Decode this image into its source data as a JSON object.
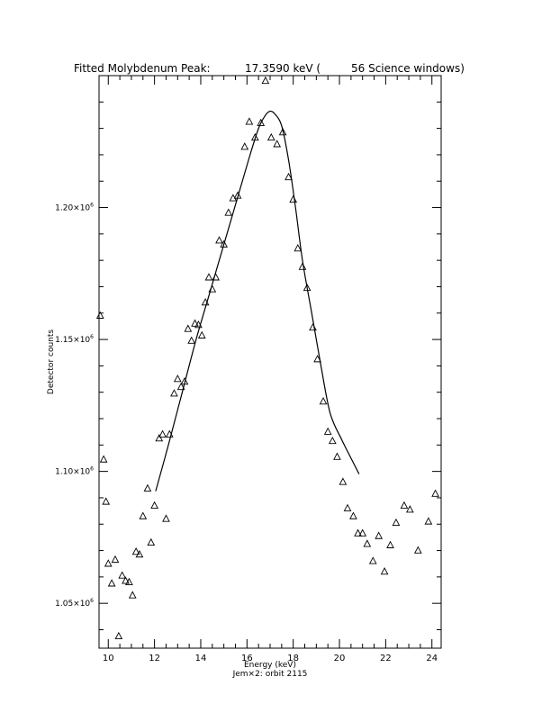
{
  "chart_data": {
    "type": "scatter",
    "title_parts": {
      "label": "Fitted Molybdenum Peak:",
      "value": "17.3590 keV (",
      "windows": "56 Science windows)"
    },
    "xlabel": "Energy (keV)",
    "ylabel": "Detector counts",
    "footer": "Jem×2: orbit 2115",
    "xlim": [
      9.6,
      24.4
    ],
    "ylim": [
      1033000,
      1250000
    ],
    "x_ticks": [
      10,
      12,
      14,
      16,
      18,
      20,
      22,
      24
    ],
    "y_ticks": [
      {
        "value": 1050000,
        "mantissa": "1.05×10",
        "exp": "6"
      },
      {
        "value": 1100000,
        "mantissa": "1.10×10",
        "exp": "6"
      },
      {
        "value": 1150000,
        "mantissa": "1.15×10",
        "exp": "6"
      },
      {
        "value": 1200000,
        "mantissa": "1.20×10",
        "exp": "6"
      }
    ],
    "marker": "triangle",
    "points": [
      [
        9.65,
        1159000
      ],
      [
        9.8,
        1104500
      ],
      [
        9.9,
        1088500
      ],
      [
        10.0,
        1065000
      ],
      [
        10.15,
        1057500
      ],
      [
        10.3,
        1066500
      ],
      [
        10.45,
        1037500
      ],
      [
        10.6,
        1060500
      ],
      [
        10.75,
        1058500
      ],
      [
        10.9,
        1058000
      ],
      [
        11.05,
        1053000
      ],
      [
        11.2,
        1069500
      ],
      [
        11.35,
        1068500
      ],
      [
        11.5,
        1083000
      ],
      [
        11.7,
        1093500
      ],
      [
        11.85,
        1073000
      ],
      [
        12.0,
        1087000
      ],
      [
        12.2,
        1112500
      ],
      [
        12.35,
        1114000
      ],
      [
        12.5,
        1082000
      ],
      [
        12.65,
        1114000
      ],
      [
        12.85,
        1129500
      ],
      [
        13.0,
        1135000
      ],
      [
        13.15,
        1132000
      ],
      [
        13.3,
        1134000
      ],
      [
        13.45,
        1154000
      ],
      [
        13.6,
        1149500
      ],
      [
        13.75,
        1156000
      ],
      [
        13.9,
        1155500
      ],
      [
        14.05,
        1151500
      ],
      [
        14.2,
        1164000
      ],
      [
        14.35,
        1173500
      ],
      [
        14.5,
        1169000
      ],
      [
        14.65,
        1173500
      ],
      [
        14.8,
        1187500
      ],
      [
        15.0,
        1186000
      ],
      [
        15.2,
        1198000
      ],
      [
        15.4,
        1203500
      ],
      [
        15.6,
        1204500
      ],
      [
        15.9,
        1223000
      ],
      [
        16.1,
        1232500
      ],
      [
        16.35,
        1226500
      ],
      [
        16.6,
        1232000
      ],
      [
        16.8,
        1248000
      ],
      [
        17.05,
        1226500
      ],
      [
        17.3,
        1224000
      ],
      [
        17.55,
        1228500
      ],
      [
        17.8,
        1211500
      ],
      [
        18.0,
        1203000
      ],
      [
        18.2,
        1184500
      ],
      [
        18.4,
        1177500
      ],
      [
        18.6,
        1169500
      ],
      [
        18.85,
        1154500
      ],
      [
        19.05,
        1142500
      ],
      [
        19.3,
        1126500
      ],
      [
        19.5,
        1115000
      ],
      [
        19.7,
        1111500
      ],
      [
        19.9,
        1105500
      ],
      [
        20.15,
        1096000
      ],
      [
        20.35,
        1086000
      ],
      [
        20.6,
        1083000
      ],
      [
        20.8,
        1076500
      ],
      [
        21.0,
        1076500
      ],
      [
        21.2,
        1072500
      ],
      [
        21.45,
        1066000
      ],
      [
        21.7,
        1075500
      ],
      [
        21.95,
        1062000
      ],
      [
        22.2,
        1072000
      ],
      [
        22.45,
        1080500
      ],
      [
        22.8,
        1087000
      ],
      [
        23.05,
        1085500
      ],
      [
        23.4,
        1070000
      ],
      [
        23.85,
        1081000
      ],
      [
        24.15,
        1091500
      ]
    ],
    "fit": {
      "type": "gaussian",
      "center": 17.359,
      "x_range": [
        12.05,
        20.85
      ],
      "curve": [
        [
          12.05,
          1092500
        ],
        [
          12.6,
          1110000
        ],
        [
          13.2,
          1130000
        ],
        [
          13.8,
          1150000
        ],
        [
          14.4,
          1168000
        ],
        [
          15.0,
          1186000
        ],
        [
          15.6,
          1204000
        ],
        [
          16.1,
          1219000
        ],
        [
          16.5,
          1230000
        ],
        [
          16.8,
          1235000
        ],
        [
          17.0,
          1236500
        ],
        [
          17.2,
          1235500
        ],
        [
          17.5,
          1231000
        ],
        [
          17.8,
          1218000
        ],
        [
          18.1,
          1200000
        ],
        [
          18.4,
          1180000
        ],
        [
          18.8,
          1160000
        ],
        [
          19.2,
          1140000
        ],
        [
          19.6,
          1122000
        ],
        [
          20.1,
          1112000
        ],
        [
          20.5,
          1105000
        ],
        [
          20.85,
          1099000
        ]
      ]
    }
  }
}
